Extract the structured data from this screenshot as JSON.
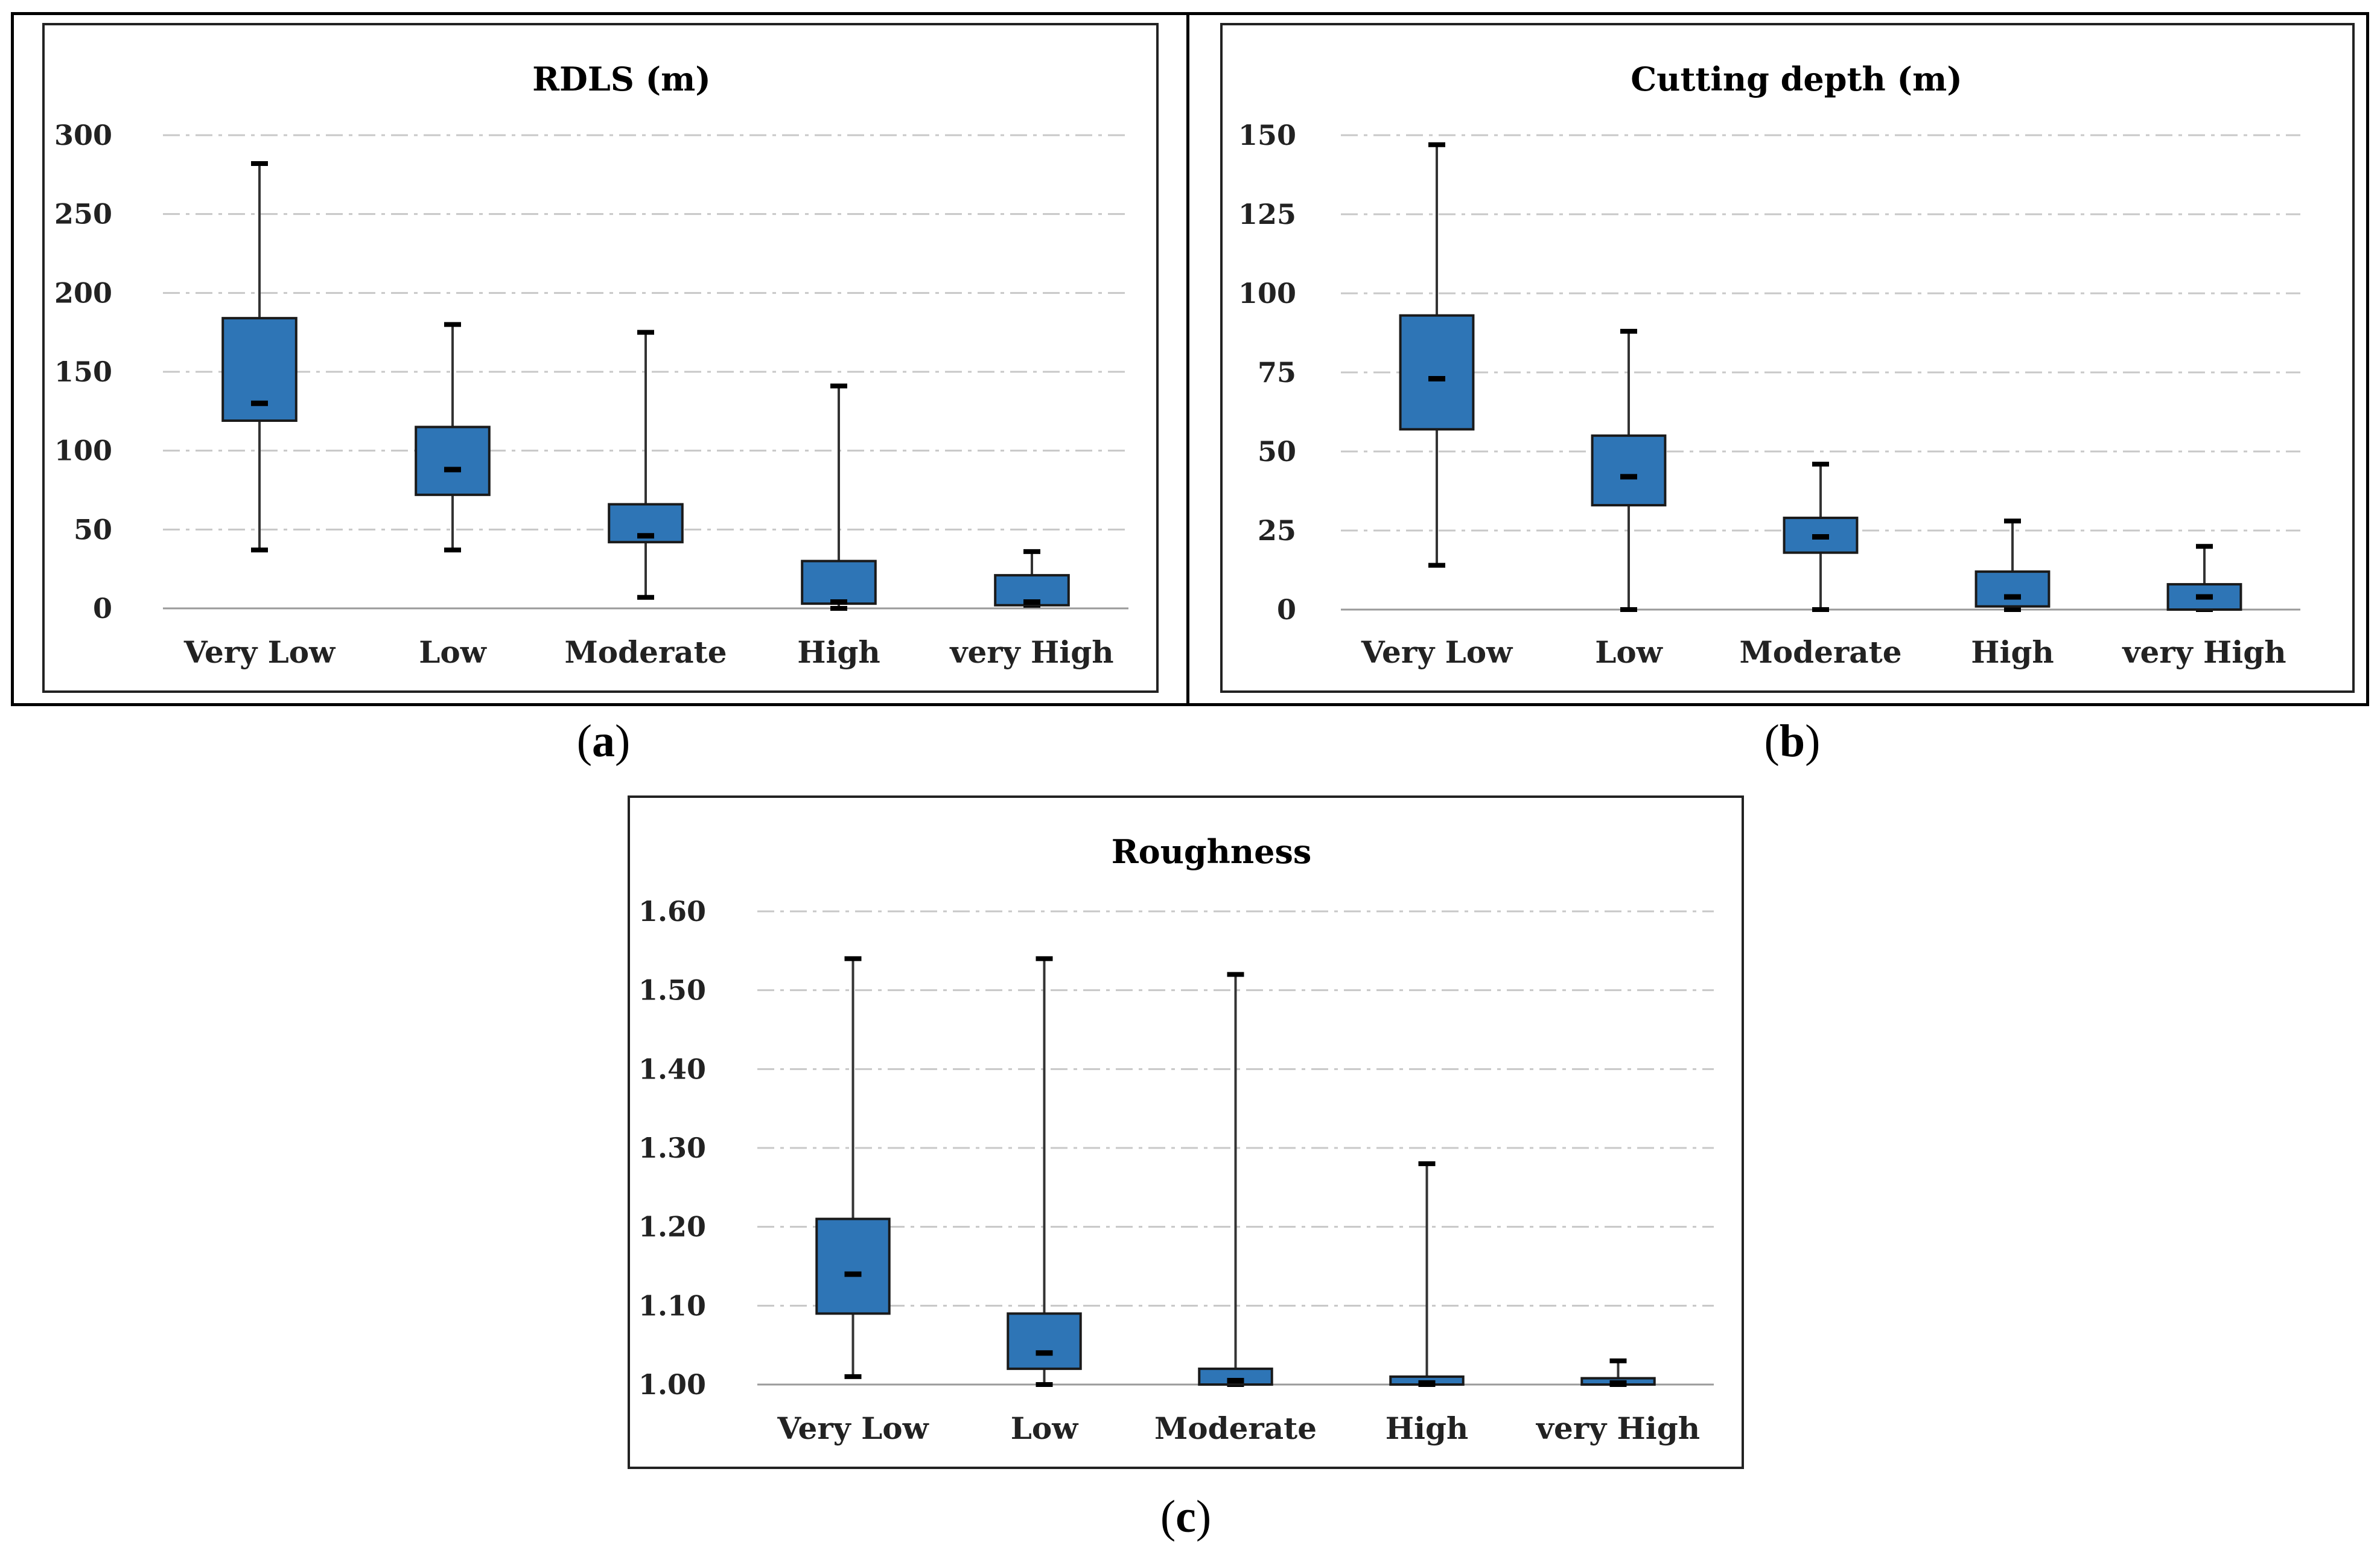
{
  "colors": {
    "box_fill": "#2E75B6",
    "box_edge": "#1a1a1a",
    "grid": "#c8c8c8",
    "axis": "#9a9a9a",
    "whisker": "#333333"
  },
  "panels": [
    {
      "letter": "a"
    },
    {
      "letter": "b"
    },
    {
      "letter": "c"
    }
  ],
  "chart_data": [
    {
      "type": "box",
      "title": "RDLS (m)",
      "categories": [
        "Very Low",
        "Low",
        "Moderate",
        "High",
        "very High"
      ],
      "ylim": [
        0,
        300
      ],
      "yticks": [
        0,
        50,
        100,
        150,
        200,
        250,
        300
      ],
      "tick_labels": [
        "0",
        "50",
        "100",
        "150",
        "200",
        "250",
        "300"
      ],
      "grid": true,
      "boxes": [
        {
          "min": 37,
          "q1": 119,
          "median": 130,
          "q3": 184,
          "max": 282
        },
        {
          "min": 37,
          "q1": 72,
          "median": 88,
          "q3": 115,
          "max": 180
        },
        {
          "min": 7,
          "q1": 42,
          "median": 46,
          "q3": 66,
          "max": 175
        },
        {
          "min": 0,
          "q1": 3,
          "median": 4,
          "q3": 30,
          "max": 141
        },
        {
          "min": 2,
          "q1": 2,
          "median": 4,
          "q3": 21,
          "max": 36
        }
      ]
    },
    {
      "type": "box",
      "title": "Cutting depth (m)",
      "categories": [
        "Very Low",
        "Low",
        "Moderate",
        "High",
        "very High"
      ],
      "ylim": [
        0,
        150
      ],
      "yticks": [
        0,
        25,
        50,
        75,
        100,
        125,
        150
      ],
      "tick_labels": [
        "0",
        "25",
        "50",
        "75",
        "100",
        "125",
        "150"
      ],
      "grid": true,
      "boxes": [
        {
          "min": 14,
          "q1": 57,
          "median": 73,
          "q3": 93,
          "max": 147
        },
        {
          "min": 0,
          "q1": 33,
          "median": 42,
          "q3": 55,
          "max": 88
        },
        {
          "min": 0,
          "q1": 18,
          "median": 23,
          "q3": 29,
          "max": 46
        },
        {
          "min": 0,
          "q1": 1,
          "median": 4,
          "q3": 12,
          "max": 28
        },
        {
          "min": 0,
          "q1": 0,
          "median": 4,
          "q3": 8,
          "max": 20
        }
      ]
    },
    {
      "type": "box",
      "title": "Roughness",
      "categories": [
        "Very Low",
        "Low",
        "Moderate",
        "High",
        "very High"
      ],
      "ylim": [
        1.0,
        1.6
      ],
      "yticks": [
        1.0,
        1.1,
        1.2,
        1.3,
        1.4,
        1.5,
        1.6
      ],
      "tick_labels": [
        "1.00",
        "1.10",
        "1.20",
        "1.30",
        "1.40",
        "1.50",
        "1.60"
      ],
      "grid": true,
      "boxes": [
        {
          "min": 1.01,
          "q1": 1.09,
          "median": 1.14,
          "q3": 1.21,
          "max": 1.54
        },
        {
          "min": 1.0,
          "q1": 1.02,
          "median": 1.04,
          "q3": 1.09,
          "max": 1.54
        },
        {
          "min": 1.0,
          "q1": 1.0,
          "median": 1.005,
          "q3": 1.02,
          "max": 1.52
        },
        {
          "min": 1.0,
          "q1": 1.0,
          "median": 1.002,
          "q3": 1.01,
          "max": 1.28
        },
        {
          "min": 1.0,
          "q1": 1.0,
          "median": 1.002,
          "q3": 1.008,
          "max": 1.03
        }
      ]
    }
  ]
}
